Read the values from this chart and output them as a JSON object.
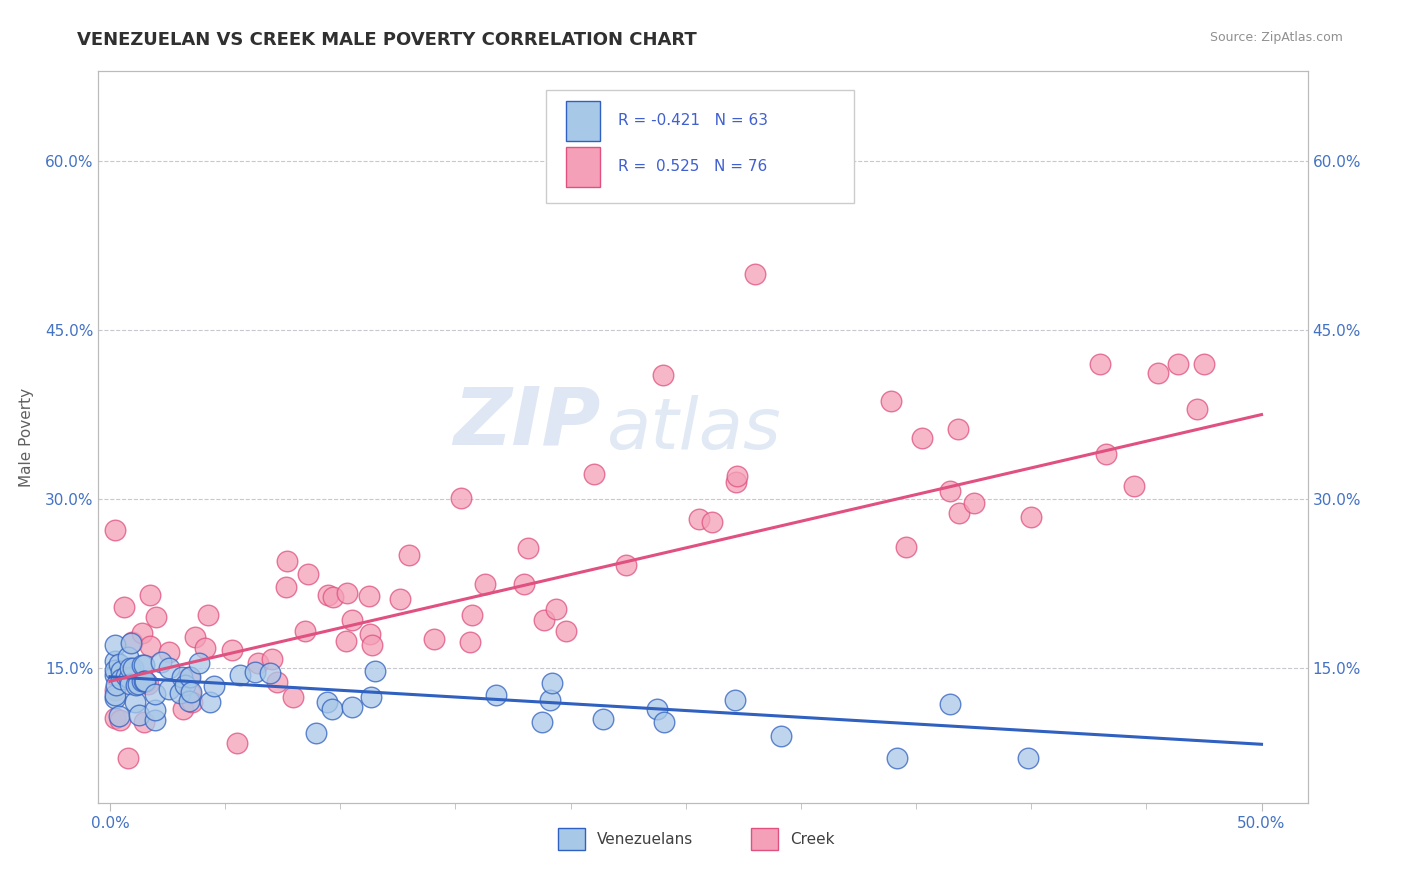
{
  "title": "VENEZUELAN VS CREEK MALE POVERTY CORRELATION CHART",
  "source": "Source: ZipAtlas.com",
  "ylabel": "Male Poverty",
  "xlim": [
    -0.005,
    0.52
  ],
  "ylim": [
    0.03,
    0.68
  ],
  "xtick_positions": [
    0.0,
    0.5
  ],
  "xtick_labels": [
    "0.0%",
    "50.0%"
  ],
  "ytick_positions": [
    0.15,
    0.3,
    0.45,
    0.6
  ],
  "ytick_labels": [
    "15.0%",
    "30.0%",
    "45.0%",
    "60.0%"
  ],
  "color_venezuelan": "#A8C8E8",
  "color_creek": "#F4A0B8",
  "line_color_venezuelan": "#3060C0",
  "line_color_creek": "#E05080",
  "watermark_zip": "ZIP",
  "watermark_atlas": "atlas",
  "background_color": "#FFFFFF",
  "grid_color": "#C8C8D0",
  "title_color": "#303030",
  "axis_tick_color": "#4472C4",
  "ylabel_color": "#606060",
  "source_color": "#909090",
  "legend_text_color": "#303090",
  "legend_r_color": "#4060D0",
  "ven_line_y0": 0.142,
  "ven_line_y1": 0.082,
  "creek_line_y0": 0.138,
  "creek_line_y1": 0.375
}
